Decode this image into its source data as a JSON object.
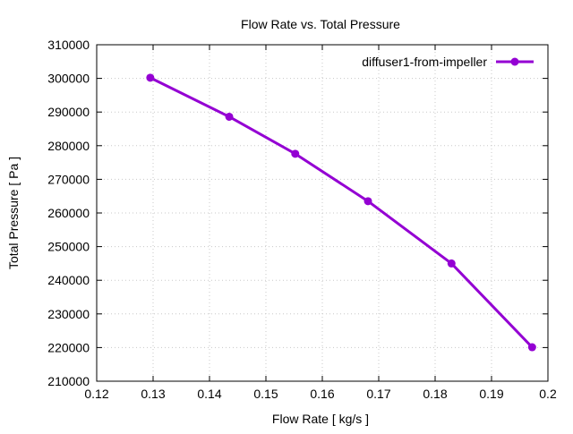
{
  "chart_data": {
    "type": "line",
    "title": "Flow Rate vs. Total Pressure",
    "xlabel": "Flow Rate [ kg/s ]",
    "ylabel": "Total Pressure [ Pa ]",
    "xlim": [
      0.12,
      0.2
    ],
    "ylim": [
      210000,
      310000
    ],
    "xticks": [
      "0.12",
      "0.13",
      "0.14",
      "0.15",
      "0.16",
      "0.17",
      "0.18",
      "0.19",
      "0.2"
    ],
    "yticks": [
      "210000",
      "220000",
      "230000",
      "240000",
      "250000",
      "260000",
      "270000",
      "280000",
      "290000",
      "300000",
      "310000"
    ],
    "grid": true,
    "legend_position": "top-right",
    "series": [
      {
        "name": "diffuser1-from-impeller",
        "color": "#9400d3",
        "x": [
          0.1295,
          0.1435,
          0.1552,
          0.1681,
          0.1829,
          0.1972
        ],
        "y": [
          300200,
          288600,
          277600,
          263500,
          245000,
          220100
        ]
      }
    ]
  }
}
